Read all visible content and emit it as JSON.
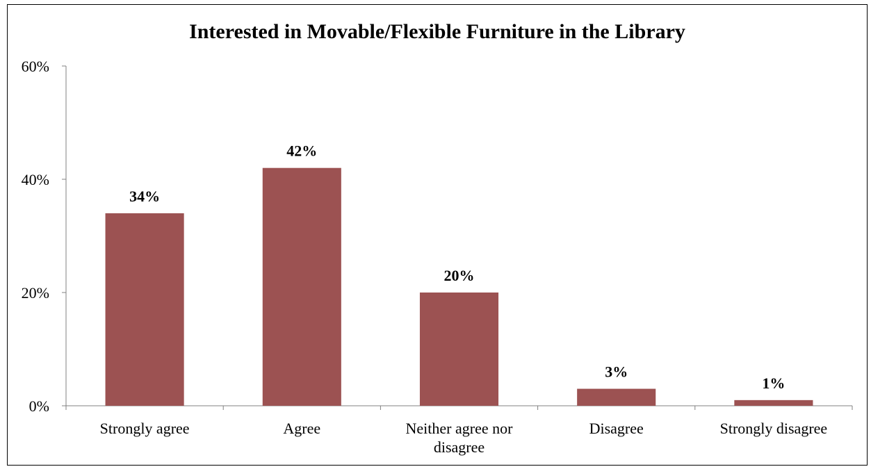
{
  "chart_data": {
    "type": "bar",
    "title": "Interested in Movable/Flexible Furniture in the Library",
    "xlabel": "",
    "ylabel": "",
    "categories": [
      "Strongly agree",
      "Agree",
      "Neither agree nor disagree",
      "Disagree",
      "Strongly disagree"
    ],
    "category_lines": [
      [
        "Strongly agree"
      ],
      [
        "Agree"
      ],
      [
        "Neither agree nor",
        "disagree"
      ],
      [
        "Disagree"
      ],
      [
        "Strongly disagree"
      ]
    ],
    "values": [
      34,
      42,
      20,
      3,
      1
    ],
    "data_labels": [
      "34%",
      "42%",
      "20%",
      "3%",
      "1%"
    ],
    "ylim": [
      0,
      60
    ],
    "yticks": [
      0,
      20,
      40,
      60
    ],
    "ytick_labels": [
      "0%",
      "20%",
      "40%",
      "60%"
    ],
    "bar_color": "#9C5252",
    "grid": false,
    "legend": "none"
  }
}
